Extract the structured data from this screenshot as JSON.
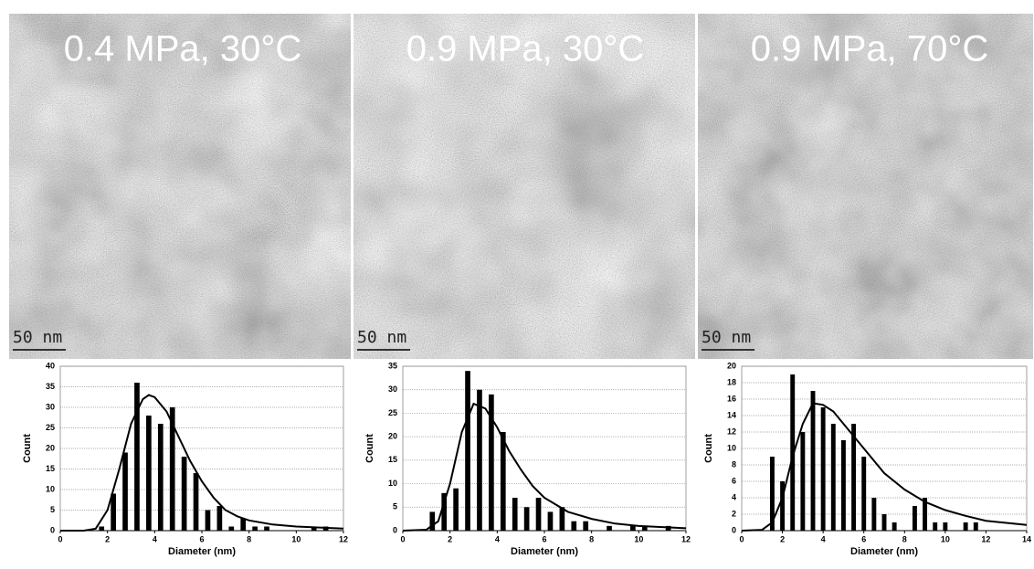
{
  "panels": [
    {
      "label": "0.4 MPa, 30°C",
      "scale_bar": "50 nm"
    },
    {
      "label": "0.9 MPa, 30°C",
      "scale_bar": "50 nm"
    },
    {
      "label": "0.9 MPa, 70°C",
      "scale_bar": "50 nm"
    }
  ],
  "chart_data": [
    {
      "type": "bar",
      "xlabel": "Diameter (nm)",
      "ylabel": "Count",
      "color": "#000000",
      "grid": true,
      "x": [
        1.75,
        2.25,
        2.75,
        3.25,
        3.75,
        4.25,
        4.75,
        5.25,
        5.75,
        6.25,
        6.75,
        7.25,
        7.75,
        8.25,
        8.75,
        10.75,
        11.25
      ],
      "values": [
        1,
        9,
        19,
        36,
        28,
        26,
        30,
        18,
        14,
        5,
        6,
        1,
        3,
        1,
        1,
        1,
        1
      ],
      "curve": {
        "x": [
          0,
          1,
          1.5,
          2,
          2.5,
          3,
          3.5,
          3.75,
          4,
          4.5,
          5,
          5.5,
          6,
          6.5,
          7,
          7.5,
          8,
          9,
          10,
          12
        ],
        "values": [
          0,
          0,
          0.5,
          5,
          15,
          26,
          32,
          33,
          32.5,
          29,
          23,
          17,
          12,
          8,
          5,
          3.5,
          2.5,
          1.5,
          1,
          0.5
        ]
      },
      "xlim": [
        0,
        12
      ],
      "xticks": [
        0,
        2,
        4,
        6,
        8,
        10,
        12
      ],
      "ylim": [
        0,
        40
      ],
      "yticks": [
        0,
        5,
        10,
        15,
        20,
        25,
        30,
        35,
        40
      ]
    },
    {
      "type": "bar",
      "xlabel": "Diameter (nm)",
      "ylabel": "Count",
      "color": "#000000",
      "grid": true,
      "x": [
        1.25,
        1.75,
        2.25,
        2.75,
        3.25,
        3.75,
        4.25,
        4.75,
        5.25,
        5.75,
        6.25,
        6.75,
        7.25,
        7.75,
        8.75,
        9.75,
        10.25,
        11.25
      ],
      "values": [
        4,
        8,
        9,
        34,
        30,
        29,
        21,
        7,
        5,
        7,
        4,
        5,
        2,
        2,
        1,
        1,
        1,
        1
      ],
      "curve": {
        "x": [
          0,
          1,
          1.5,
          2,
          2.5,
          3,
          3.5,
          4,
          4.5,
          5,
          5.5,
          6,
          7,
          8,
          9,
          10,
          12
        ],
        "values": [
          0,
          0.2,
          2,
          10,
          21,
          27,
          26,
          22,
          17,
          13,
          9.5,
          7,
          4,
          2.5,
          1.5,
          1,
          0.5
        ]
      },
      "xlim": [
        0,
        12
      ],
      "xticks": [
        0,
        2,
        4,
        6,
        8,
        10,
        12
      ],
      "ylim": [
        0,
        35
      ],
      "yticks": [
        0,
        5,
        10,
        15,
        20,
        25,
        30,
        35
      ]
    },
    {
      "type": "bar",
      "xlabel": "Diameter (nm)",
      "ylabel": "Count",
      "color": "#000000",
      "grid": true,
      "x": [
        1.5,
        2,
        2.5,
        3,
        3.5,
        4,
        4.5,
        5,
        5.5,
        6,
        6.5,
        7,
        7.5,
        8.5,
        9,
        9.5,
        10,
        11,
        11.5
      ],
      "values": [
        9,
        6,
        19,
        12,
        17,
        15,
        13,
        11,
        13,
        9,
        4,
        2,
        1,
        3,
        4,
        1,
        1,
        1,
        1
      ],
      "curve": {
        "x": [
          0,
          1,
          1.5,
          2,
          2.5,
          3,
          3.5,
          4,
          4.5,
          5,
          6,
          7,
          8,
          9,
          10,
          11,
          12,
          14
        ],
        "values": [
          0,
          0.1,
          1,
          4,
          9,
          13,
          15.5,
          15.3,
          14.5,
          13,
          10,
          7,
          5,
          3.5,
          2.5,
          1.8,
          1.2,
          0.7
        ]
      },
      "xlim": [
        0,
        14
      ],
      "xticks": [
        0,
        2,
        4,
        6,
        8,
        10,
        12,
        14
      ],
      "ylim": [
        0,
        20
      ],
      "yticks": [
        0,
        2,
        4,
        6,
        8,
        10,
        12,
        14,
        16,
        18,
        20
      ]
    }
  ]
}
